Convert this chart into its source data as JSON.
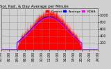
{
  "title": "Sol. Rad. & Day Average per Minute",
  "title_color": "#000000",
  "legend_labels": [
    "Current",
    "Average",
    "NOAA"
  ],
  "legend_colors": [
    "#ff0000",
    "#0000ff",
    "#ff00ff"
  ],
  "bg_color": "#d0d0d0",
  "plot_bg_color": "#d0d0d0",
  "grid_color": "#888888",
  "grid_style": "--",
  "bar_color": "#ff0000",
  "avg_color": "#0000ff",
  "noaa_color": "#ff00ff",
  "ylim": [
    0,
    1200
  ],
  "yticks": [
    200,
    400,
    600,
    800,
    1000
  ],
  "tick_fontsize": 3.5,
  "title_fontsize": 4.0,
  "legend_fontsize": 3.2
}
